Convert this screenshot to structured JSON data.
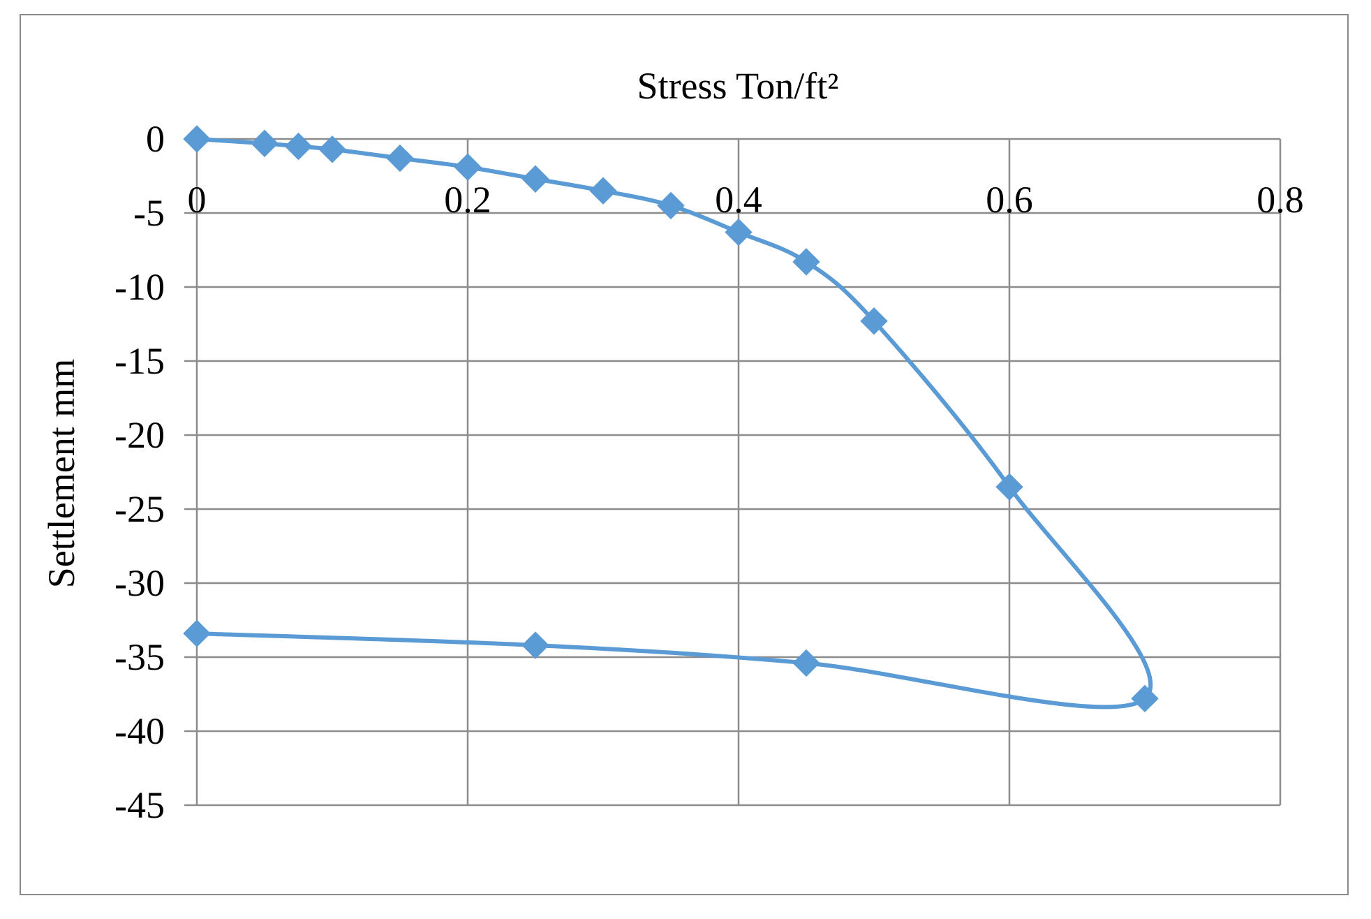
{
  "chart_data": {
    "type": "scatter",
    "title": "Stress Ton/ft²",
    "xlabel": "",
    "ylabel": "Settlement mm",
    "xlim": [
      0,
      0.8
    ],
    "ylim": [
      -45,
      0
    ],
    "x_ticks": [
      "0",
      "0.2",
      "0.4",
      "0.6",
      "0.8"
    ],
    "y_ticks": [
      "0",
      "-5",
      "-10",
      "-15",
      "-20",
      "-25",
      "-30",
      "-35",
      "-40",
      "-45"
    ],
    "x_tick_values": [
      0,
      0.2,
      0.4,
      0.6,
      0.8
    ],
    "y_tick_values": [
      0,
      -5,
      -10,
      -15,
      -20,
      -25,
      -30,
      -35,
      -40,
      -45
    ],
    "x_axis_position": "top",
    "grid": true,
    "legend": "none",
    "marker": "diamond",
    "line": "smooth",
    "series_color": "#5b9bd5",
    "series": [
      {
        "points": [
          [
            0,
            0
          ],
          [
            0.05,
            -0.3
          ],
          [
            0.075,
            -0.5
          ],
          [
            0.1,
            -0.7
          ],
          [
            0.15,
            -1.3
          ],
          [
            0.2,
            -1.9
          ],
          [
            0.25,
            -2.7
          ],
          [
            0.3,
            -3.5
          ],
          [
            0.35,
            -4.5
          ],
          [
            0.4,
            -6.3
          ],
          [
            0.45,
            -8.3
          ],
          [
            0.5,
            -12.3
          ],
          [
            0.6,
            -23.5
          ],
          [
            0.7,
            -37.8
          ],
          [
            0.45,
            -35.4
          ],
          [
            0.25,
            -34.2
          ],
          [
            0,
            -33.4
          ]
        ]
      }
    ]
  }
}
